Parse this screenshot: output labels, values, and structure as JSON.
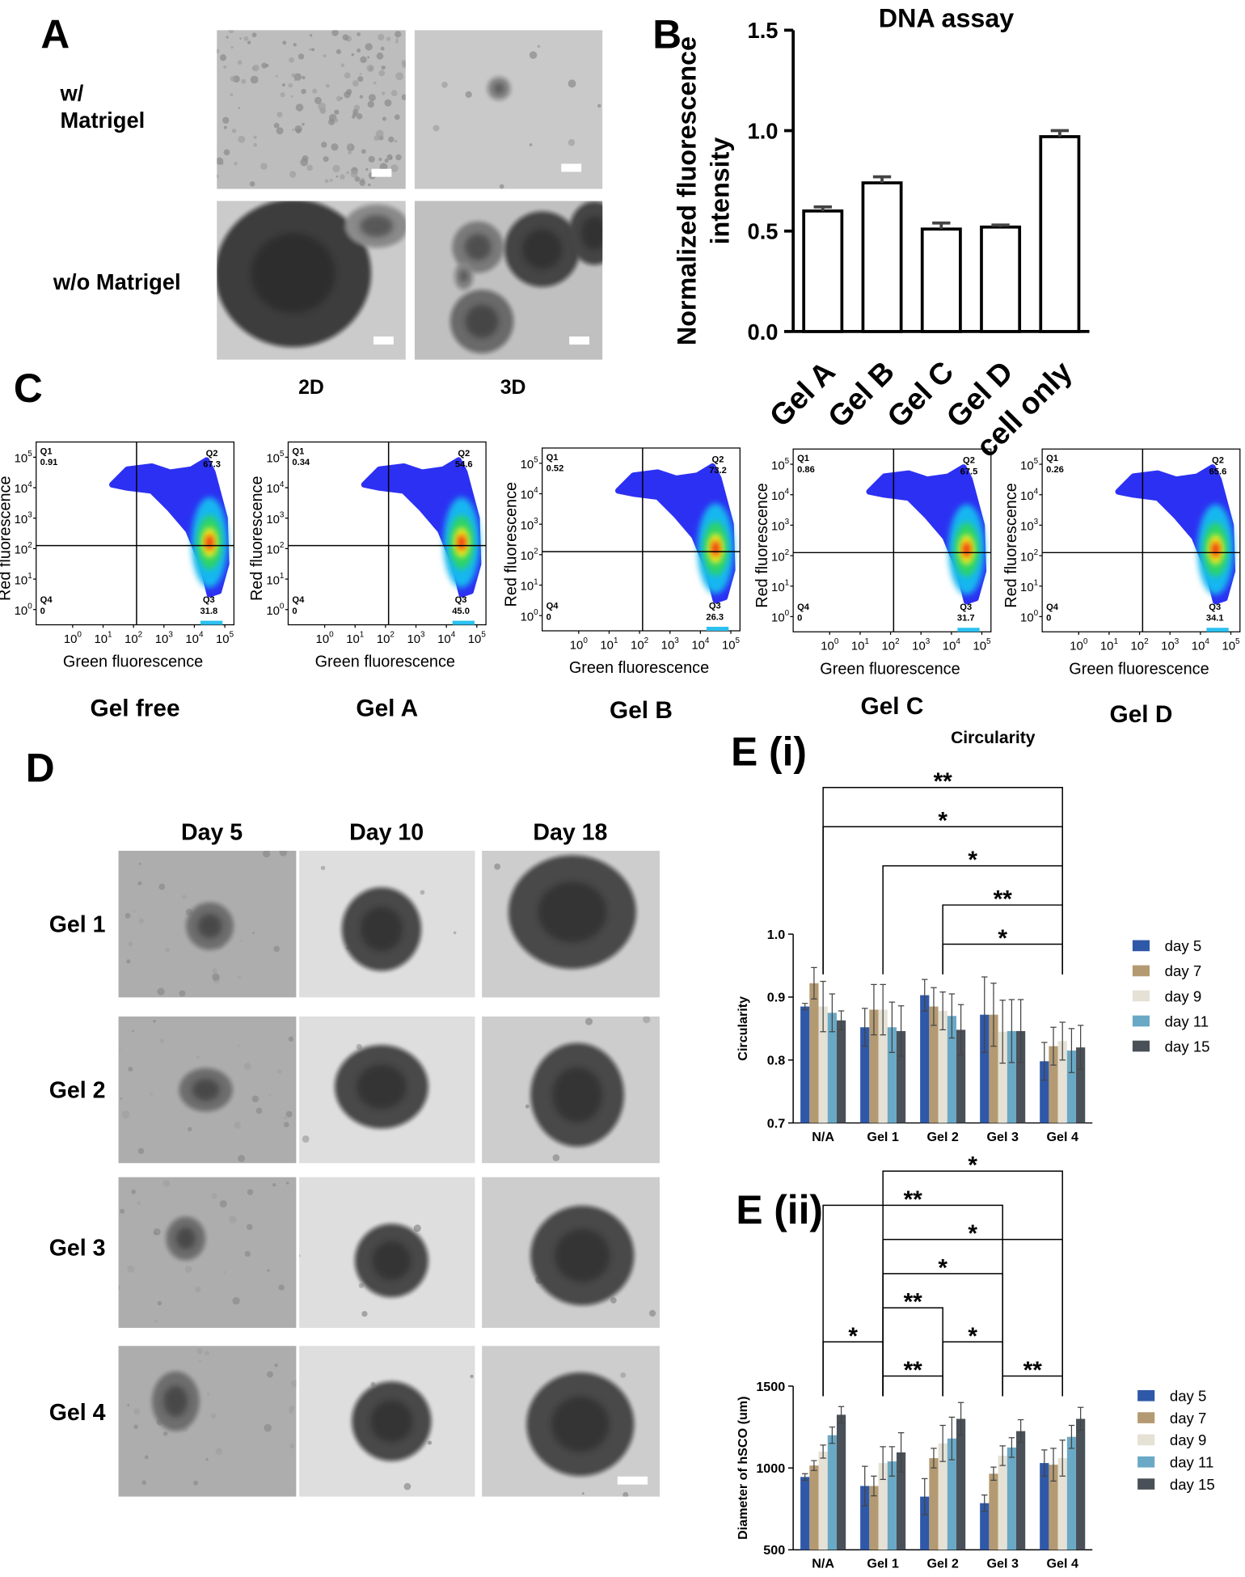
{
  "panel_a": {
    "letter": "A",
    "row_labels": [
      [
        "w/",
        "Matrigel"
      ],
      [
        "w/o Matrigel"
      ]
    ],
    "col_labels": [
      "2D",
      "3D"
    ]
  },
  "panel_c": {
    "letter": "C"
  },
  "flow_plots": {
    "xlabel": "Green fluorescence",
    "ylabel": "Red fluorescence",
    "log_base": 10,
    "xlim": [
      -1.2,
      5.3
    ],
    "ylim": [
      -0.5,
      5.5
    ],
    "ticks": [
      0,
      1,
      2,
      3,
      4,
      5
    ],
    "gate": [
      2.1,
      2.1
    ],
    "quadrant_names": [
      "Q1",
      "Q2",
      "Q3",
      "Q4"
    ],
    "plots": [
      {
        "title": "Gel free",
        "quadrants": [
          "0.91",
          "67.3",
          "31.8",
          "0"
        ]
      },
      {
        "title": "Gel A",
        "quadrants": [
          "0.34",
          "54.6",
          "45.0",
          "0"
        ]
      },
      {
        "title": "Gel B",
        "quadrants": [
          "0.52",
          "73.2",
          "26.3",
          "0"
        ]
      },
      {
        "title": "Gel C",
        "quadrants": [
          "0.86",
          "67.5",
          "31.7",
          "0"
        ]
      },
      {
        "title": "Gel D",
        "quadrants": [
          "0.26",
          "65.6",
          "34.1",
          "0"
        ]
      }
    ]
  },
  "panel_d": {
    "letter": "D",
    "col_labels": [
      "Day 5",
      "Day 10",
      "Day 18"
    ],
    "row_labels": [
      "Gel 1",
      "Gel 2",
      "Gel 3",
      "Gel 4"
    ]
  },
  "chart_data": [
    {
      "type": "bar",
      "panel": "B",
      "title": "DNA assay",
      "ylabel": [
        "Normalized fluorescence",
        "intensity"
      ],
      "categories": [
        "Gel A",
        "Gel B",
        "Gel C",
        "Gel D",
        "cell only"
      ],
      "values": [
        0.6,
        0.74,
        0.51,
        0.52,
        0.97
      ],
      "errors": [
        0.02,
        0.03,
        0.03,
        0.01,
        0.03
      ],
      "color": "#ffffff",
      "edgecolor": "#000000",
      "ylim": [
        0,
        1.5
      ],
      "yticks": [
        {
          "value": 0,
          "label": "0.0"
        },
        0.5,
        {
          "value": 1,
          "label": "1.0"
        },
        1.5
      ]
    },
    {
      "type": "grouped_bar",
      "panel": "E (i)",
      "title": "Circularity",
      "ylabel": "Circularity",
      "categories": [
        "N/A",
        "Gel 1",
        "Gel 2",
        "Gel 3",
        "Gel 4"
      ],
      "series": [
        {
          "name": "day 5",
          "color": "#2f58a8",
          "values": [
            0.885,
            0.852,
            0.903,
            0.872,
            0.798
          ],
          "errors": [
            0.005,
            0.03,
            0.025,
            0.06,
            0.03
          ]
        },
        {
          "name": "day 7",
          "color": "#b49a72",
          "values": [
            0.922,
            0.88,
            0.885,
            0.872,
            0.822
          ],
          "errors": [
            0.025,
            0.04,
            0.03,
            0.05,
            0.03
          ]
        },
        {
          "name": "day 9",
          "color": "#e5e1d5",
          "values": [
            0.885,
            0.88,
            0.878,
            0.845,
            0.83
          ],
          "errors": [
            0.04,
            0.04,
            0.03,
            0.05,
            0.03
          ]
        },
        {
          "name": "day 11",
          "color": "#6aa9c6",
          "values": [
            0.875,
            0.852,
            0.87,
            0.846,
            0.815
          ],
          "errors": [
            0.03,
            0.04,
            0.035,
            0.05,
            0.035
          ]
        },
        {
          "name": "day 15",
          "color": "#4a5058",
          "values": [
            0.863,
            0.846,
            0.848,
            0.846,
            0.82
          ],
          "errors": [
            0.015,
            0.04,
            0.04,
            0.05,
            0.035
          ]
        }
      ],
      "ylim": [
        0.7,
        1.0
      ],
      "yticks": [
        0.7,
        0.8,
        0.9,
        {
          "value": 1,
          "label": "1.0"
        }
      ],
      "brackets": [
        {
          "from": 2,
          "to": 4,
          "label": "*"
        },
        {
          "from": 2,
          "to": 4,
          "label": "**"
        },
        {
          "from": 1,
          "to": 4,
          "label": "*"
        },
        {
          "from": 0,
          "to": 4,
          "label": "*"
        },
        {
          "from": 0,
          "to": 4,
          "label": "**"
        }
      ]
    },
    {
      "type": "grouped_bar",
      "panel": "E (ii)",
      "ylabel": "Diameter of hSCO (um)",
      "categories": [
        "N/A",
        "Gel 1",
        "Gel 2",
        "Gel 3",
        "Gel 4"
      ],
      "series": [
        {
          "name": "day 5",
          "color": "#2f58a8",
          "values": [
            945,
            890,
            825,
            785,
            1030
          ],
          "errors": [
            20,
            120,
            110,
            50,
            80
          ]
        },
        {
          "name": "day 7",
          "color": "#b49a72",
          "values": [
            1015,
            890,
            1060,
            965,
            1020
          ],
          "errors": [
            30,
            60,
            60,
            40,
            100
          ]
        },
        {
          "name": "day 9",
          "color": "#e5e1d5",
          "values": [
            1100,
            1030,
            1150,
            1075,
            1060
          ],
          "errors": [
            40,
            100,
            110,
            60,
            110
          ]
        },
        {
          "name": "day 11",
          "color": "#6aa9c6",
          "values": [
            1200,
            1040,
            1180,
            1125,
            1190
          ],
          "errors": [
            50,
            90,
            130,
            60,
            70
          ]
        },
        {
          "name": "day 15",
          "color": "#4a5058",
          "values": [
            1325,
            1095,
            1300,
            1225,
            1300
          ],
          "errors": [
            50,
            120,
            100,
            70,
            70
          ]
        }
      ],
      "ylim": [
        500,
        1500
      ],
      "yticks": [
        500,
        1000,
        1500
      ],
      "brackets": [
        {
          "from": 1,
          "to": 2,
          "label": "**"
        },
        {
          "from": 3,
          "to": 4,
          "label": "**"
        },
        {
          "from": 0,
          "to": 1,
          "label": "*"
        },
        {
          "from": 2,
          "to": 3,
          "label": "*"
        },
        {
          "from": 1,
          "to": 2,
          "label": "**"
        },
        {
          "from": 1,
          "to": 3,
          "label": "*"
        },
        {
          "from": 1,
          "to": 4,
          "label": "*"
        },
        {
          "from": 0,
          "to": 3,
          "label": "**"
        },
        {
          "from": 1,
          "to": 4,
          "label": "*"
        }
      ]
    }
  ]
}
